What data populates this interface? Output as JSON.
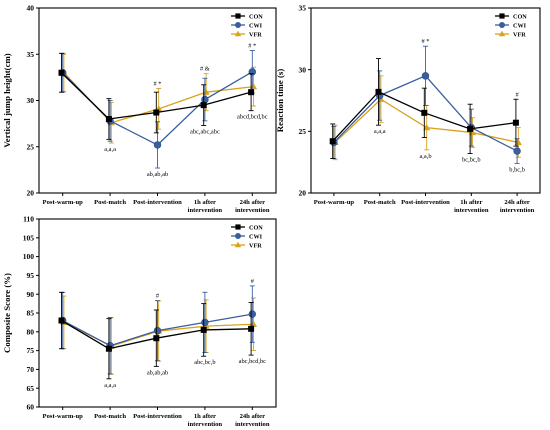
{
  "chart_data": [
    {
      "type": "line",
      "ylabel": "Vertical jump height(cm)",
      "ylim": [
        20,
        40
      ],
      "yticks": [
        20,
        25,
        30,
        35,
        40
      ],
      "categories": [
        "Post-warm-up",
        "Post-match",
        "Post-intervention",
        "1h after intervention",
        "24h after intervention"
      ],
      "category_lines": [
        [
          "Post-warm-up"
        ],
        [
          "Post-match"
        ],
        [
          "Post-intervention"
        ],
        [
          "1h after",
          "intervention"
        ],
        [
          "24h after",
          "intervention"
        ]
      ],
      "legend": {
        "entries": [
          "CON",
          "CWI",
          "VFR"
        ],
        "placement": "top-right"
      },
      "series": [
        {
          "name": "CON",
          "color": "#000000",
          "marker": "square",
          "values": [
            33.0,
            28.0,
            28.7,
            29.5,
            30.9
          ],
          "errors": [
            2.1,
            2.2,
            2.2,
            2.2,
            2.0
          ]
        },
        {
          "name": "CWI",
          "color": "#3a5f9f",
          "marker": "circle",
          "values": [
            33.0,
            27.8,
            25.2,
            30.1,
            33.1
          ],
          "errors": [
            2.1,
            2.2,
            2.5,
            2.3,
            2.3
          ]
        },
        {
          "name": "VFR",
          "color": "#d9a21b",
          "marker": "triangle",
          "values": [
            33.0,
            27.6,
            29.1,
            30.9,
            31.5
          ],
          "errors": [
            2.0,
            2.2,
            2.2,
            2.0,
            2.1
          ]
        }
      ],
      "annotations": [
        {
          "category": "Post-match",
          "text": "a,a,a",
          "position": "below"
        },
        {
          "category": "Post-intervention",
          "text": "# *",
          "position": "above"
        },
        {
          "category": "Post-intervention",
          "text": "ab,ab,ab",
          "position": "below"
        },
        {
          "category": "1h after intervention",
          "text": "# &",
          "position": "above"
        },
        {
          "category": "1h after intervention",
          "text": "abc,abc,abc",
          "position": "below"
        },
        {
          "category": "24h after intervention",
          "text": "# *",
          "position": "above"
        },
        {
          "category": "24h after intervention",
          "text": "abcd,bcd,bc",
          "position": "below"
        }
      ]
    },
    {
      "type": "line",
      "ylabel": "Reaction time (s)",
      "ylim": [
        20,
        35
      ],
      "yticks": [
        20,
        25,
        30,
        35
      ],
      "categories": [
        "Post-warm-up",
        "Post-match",
        "Post-intervention",
        "1h after intervention",
        "24h after intervention"
      ],
      "category_lines": [
        [
          "Post-warm-up"
        ],
        [
          "Post-match"
        ],
        [
          "Post-intervention"
        ],
        [
          "1h after",
          "intervention"
        ],
        [
          "24h after",
          "intervention"
        ]
      ],
      "legend": {
        "entries": [
          "CON",
          "CWI",
          "VFR"
        ],
        "placement": "top-right"
      },
      "series": [
        {
          "name": "CON",
          "color": "#000000",
          "marker": "square",
          "values": [
            24.2,
            28.2,
            26.5,
            25.2,
            25.7
          ],
          "errors": [
            1.4,
            2.7,
            2.0,
            2.0,
            1.9
          ]
        },
        {
          "name": "CWI",
          "color": "#3a5f9f",
          "marker": "circle",
          "values": [
            24.1,
            27.9,
            29.5,
            25.3,
            23.4
          ],
          "errors": [
            1.3,
            2.0,
            2.4,
            1.5,
            1.0
          ]
        },
        {
          "name": "VFR",
          "color": "#d9a21b",
          "marker": "triangle",
          "values": [
            24.1,
            27.6,
            25.3,
            24.9,
            24.1
          ],
          "errors": [
            1.4,
            1.9,
            1.8,
            1.2,
            1.2
          ]
        }
      ],
      "annotations": [
        {
          "category": "Post-match",
          "text": "a,a,a",
          "position": "below"
        },
        {
          "category": "Post-intervention",
          "text": "# *",
          "position": "above"
        },
        {
          "category": "Post-intervention",
          "text": "a,a,b",
          "position": "below"
        },
        {
          "category": "1h after intervention",
          "text": "bc,bc,b",
          "position": "below"
        },
        {
          "category": "24h after intervention",
          "text": "#",
          "position": "above"
        },
        {
          "category": "24h after intervention",
          "text": "b,bc,b",
          "position": "below"
        }
      ]
    },
    {
      "type": "line",
      "ylabel": "Composite Score (%)",
      "ylim": [
        60,
        110
      ],
      "yticks": [
        60,
        65,
        70,
        75,
        80,
        85,
        90,
        95,
        100,
        105,
        110
      ],
      "categories": [
        "Post-warm-up",
        "Post-match",
        "Post-intervention",
        "1h after intervention",
        "24h after intervention"
      ],
      "category_lines": [
        [
          "Post-warm-up"
        ],
        [
          "Post-match"
        ],
        [
          "Post-intervention"
        ],
        [
          "1h after",
          "intervention"
        ],
        [
          "24h after",
          "intervention"
        ]
      ],
      "legend": {
        "entries": [
          "CON",
          "CWI",
          "VFR"
        ],
        "placement": "top-right"
      },
      "series": [
        {
          "name": "CON",
          "color": "#000000",
          "marker": "square",
          "values": [
            83.0,
            75.5,
            78.3,
            80.5,
            80.8
          ],
          "errors": [
            7.5,
            8.0,
            7.5,
            7.0,
            7.0
          ]
        },
        {
          "name": "CWI",
          "color": "#3a5f9f",
          "marker": "circle",
          "values": [
            83.0,
            76.3,
            80.3,
            82.5,
            84.7
          ],
          "errors": [
            7.5,
            7.5,
            8.0,
            8.0,
            7.5
          ]
        },
        {
          "name": "VFR",
          "color": "#d9a21b",
          "marker": "triangle",
          "values": [
            82.5,
            76.2,
            80.2,
            81.5,
            82.0
          ],
          "errors": [
            7.0,
            7.5,
            8.0,
            7.0,
            7.0
          ]
        }
      ],
      "annotations": [
        {
          "category": "Post-match",
          "text": "a,a,a",
          "position": "below"
        },
        {
          "category": "Post-intervention",
          "text": "#",
          "position": "above"
        },
        {
          "category": "Post-intervention",
          "text": "ab,ab,ab",
          "position": "below"
        },
        {
          "category": "1h after intervention",
          "text": "abc,bc,b",
          "position": "below"
        },
        {
          "category": "24h after intervention",
          "text": "#",
          "position": "above"
        },
        {
          "category": "24h after intervention",
          "text": "abc,bcd,bc",
          "position": "below"
        }
      ]
    }
  ]
}
